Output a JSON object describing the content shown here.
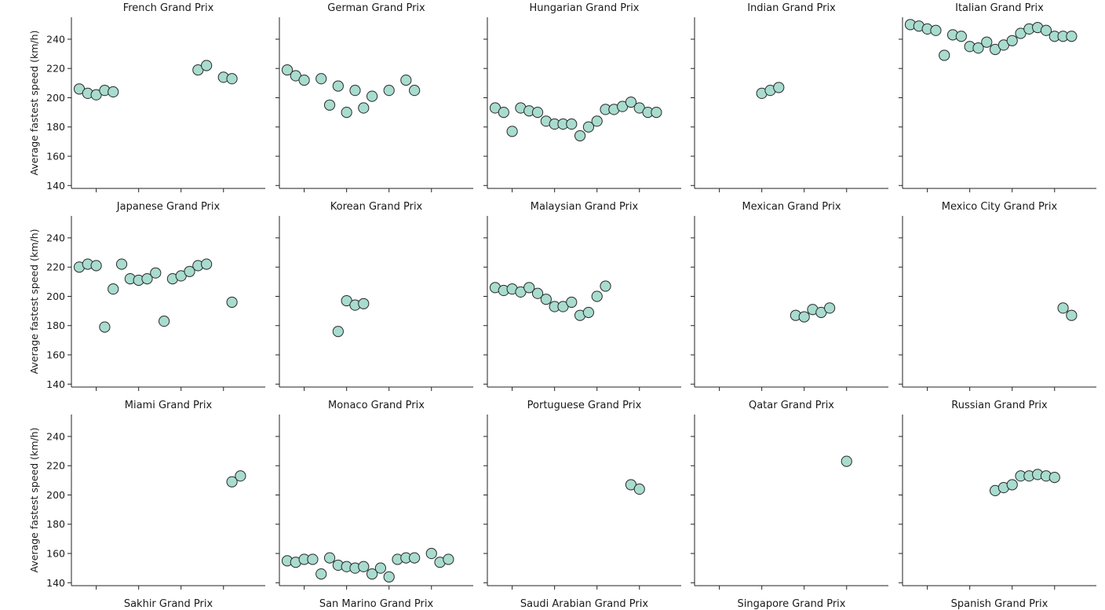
{
  "chart_data": {
    "type": "scatter",
    "ylabel": "Average fastest speed (km/h)",
    "ylim": [
      138,
      255
    ],
    "yticks": [
      140,
      160,
      180,
      200,
      220,
      240
    ],
    "xlim": [
      2004,
      2025
    ],
    "xticks": [
      2006,
      2011,
      2016,
      2021
    ],
    "grid": false,
    "marker_color": "#a8dccf",
    "edge_color": "#2a2a2a",
    "panels": [
      {
        "title": "French Grand Prix",
        "x": [
          2004,
          2005,
          2006,
          2007,
          2008,
          2018,
          2019,
          2021,
          2022
        ],
        "y": [
          206,
          203,
          202,
          205,
          204,
          219,
          222,
          214,
          213
        ]
      },
      {
        "title": "German Grand Prix",
        "x": [
          2004,
          2005,
          2006,
          2008,
          2009,
          2010,
          2011,
          2012,
          2013,
          2014,
          2016,
          2018,
          2019
        ],
        "y": [
          219,
          215,
          212,
          213,
          195,
          208,
          190,
          205,
          193,
          201,
          205,
          212,
          205
        ]
      },
      {
        "title": "Hungarian Grand Prix",
        "x": [
          2004,
          2005,
          2006,
          2007,
          2008,
          2009,
          2010,
          2011,
          2012,
          2013,
          2014,
          2015,
          2016,
          2017,
          2018,
          2019,
          2020,
          2021,
          2022,
          2023
        ],
        "y": [
          193,
          190,
          177,
          193,
          191,
          190,
          184,
          182,
          182,
          182,
          174,
          180,
          184,
          192,
          192,
          194,
          197,
          193,
          190,
          190
        ]
      },
      {
        "title": "Indian Grand Prix",
        "x": [
          2011,
          2012,
          2013
        ],
        "y": [
          203,
          205,
          207
        ]
      },
      {
        "title": "Italian Grand Prix",
        "x": [
          2004,
          2005,
          2006,
          2007,
          2008,
          2009,
          2010,
          2011,
          2012,
          2013,
          2014,
          2015,
          2016,
          2017,
          2018,
          2019,
          2020,
          2021,
          2022,
          2023
        ],
        "y": [
          250,
          249,
          247,
          246,
          229,
          243,
          242,
          235,
          234,
          238,
          233,
          236,
          239,
          244,
          247,
          248,
          246,
          242,
          242,
          242
        ]
      },
      {
        "title": "Japanese Grand Prix",
        "x": [
          2004,
          2005,
          2006,
          2007,
          2008,
          2009,
          2010,
          2011,
          2012,
          2013,
          2014,
          2015,
          2016,
          2017,
          2018,
          2019,
          2022
        ],
        "y": [
          220,
          222,
          221,
          179,
          205,
          222,
          212,
          211,
          212,
          216,
          183,
          212,
          214,
          217,
          221,
          222,
          196
        ]
      },
      {
        "title": "Korean Grand Prix",
        "x": [
          2010,
          2011,
          2012,
          2013
        ],
        "y": [
          176,
          197,
          194,
          195
        ]
      },
      {
        "title": "Malaysian Grand Prix",
        "x": [
          2004,
          2005,
          2006,
          2007,
          2008,
          2009,
          2010,
          2011,
          2012,
          2013,
          2014,
          2015,
          2016,
          2017
        ],
        "y": [
          206,
          204,
          205,
          203,
          206,
          202,
          198,
          193,
          193,
          196,
          187,
          189,
          200,
          207
        ]
      },
      {
        "title": "Mexican Grand Prix",
        "x": [
          2015,
          2016,
          2017,
          2018,
          2019
        ],
        "y": [
          187,
          186,
          191,
          189,
          192
        ]
      },
      {
        "title": "Mexico City Grand Prix",
        "x": [
          2022,
          2023
        ],
        "y": [
          192,
          187
        ]
      },
      {
        "title": "Miami Grand Prix",
        "x": [
          2022,
          2023
        ],
        "y": [
          209,
          213
        ]
      },
      {
        "title": "Monaco Grand Prix",
        "x": [
          2004,
          2005,
          2006,
          2007,
          2008,
          2009,
          2010,
          2011,
          2012,
          2013,
          2014,
          2015,
          2016,
          2017,
          2018,
          2019,
          2021,
          2022,
          2023
        ],
        "y": [
          155,
          154,
          156,
          156,
          146,
          157,
          152,
          151,
          150,
          151,
          146,
          150,
          144,
          156,
          157,
          157,
          160,
          154,
          156
        ]
      },
      {
        "title": "Portuguese Grand Prix",
        "x": [
          2020,
          2021
        ],
        "y": [
          207,
          204
        ]
      },
      {
        "title": "Qatar Grand Prix",
        "x": [
          2021
        ],
        "y": [
          223
        ]
      },
      {
        "title": "Russian Grand Prix",
        "x": [
          2014,
          2015,
          2016,
          2017,
          2018,
          2019,
          2020,
          2021
        ],
        "y": [
          203,
          205,
          207,
          213,
          213,
          214,
          213,
          212
        ]
      },
      {
        "title": "Sakhir Grand Prix",
        "x": [],
        "y": []
      },
      {
        "title": "San Marino Grand Prix",
        "x": [],
        "y": []
      },
      {
        "title": "Saudi Arabian Grand Prix",
        "x": [],
        "y": []
      },
      {
        "title": "Singapore Grand Prix",
        "x": [],
        "y": []
      },
      {
        "title": "Spanish Grand Prix",
        "x": [],
        "y": []
      }
    ]
  }
}
